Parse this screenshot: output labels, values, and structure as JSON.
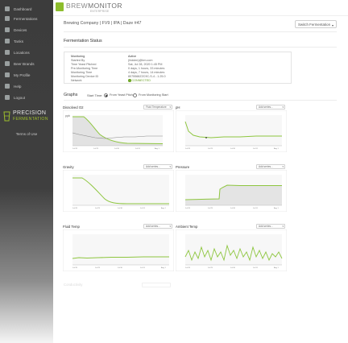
{
  "sidebar": {
    "items": [
      {
        "label": "Dashboard",
        "icon": "dashboard-icon"
      },
      {
        "label": "Fermentations",
        "icon": "fermentation-icon"
      },
      {
        "label": "Devices",
        "icon": "device-icon"
      },
      {
        "label": "Tanks",
        "icon": "tank-icon"
      },
      {
        "label": "Locations",
        "icon": "location-icon"
      },
      {
        "label": "Beer Brands",
        "icon": "beer-icon"
      },
      {
        "label": "My Profile",
        "icon": "user-icon"
      },
      {
        "label": "Help",
        "icon": "help-icon"
      },
      {
        "label": "Logout",
        "icon": "logout-icon"
      }
    ],
    "brand_line1": "PRECISION",
    "brand_line2": "FERMENTATION",
    "terms": "Terms of Use"
  },
  "header": {
    "logo_prefix": "BREW",
    "logo_suffix": "MONITOR",
    "logo_sub": "ENTERPRISE"
  },
  "breadcrumb": "Brewing Company | FV9 | IPA | Daze #47",
  "switch_button": "Switch Fermentation",
  "status": {
    "title": "Fermentation Status",
    "labels": [
      "Monitoring",
      "Started By",
      "Time Yeast Pitched",
      "Pre-Monitoring Time",
      "Monitoring Time",
      "Monitoring Device ID",
      "Network"
    ],
    "values": [
      "Active",
      "(hidden)@bm.com",
      "Sat, Jul 28, 2020 1:45 PM",
      "0 days, 1 hours, 33 minutes",
      "4 days, 7 hours, 14 minutes",
      "8075568Z2C9C-S-4 - 1.25.0"
    ],
    "network_status": "CONNECTED",
    "accent": "#71a82a"
  },
  "graphs": {
    "title": "Graphs",
    "start_time_label": "Start Time:",
    "option_yeast": "From Yeast Pitch",
    "option_monitoring": "From Monitoring Start"
  },
  "panels": [
    {
      "title": "Dissolved O2",
      "select": "Fluid Temperature",
      "y_label": "ppb"
    },
    {
      "title": "pH",
      "select": "Add series..."
    },
    {
      "title": "Gravity",
      "select": "Add series..."
    },
    {
      "title": "Pressure",
      "select": "Add series..."
    },
    {
      "title": "Fluid Temp",
      "select": "Add series..."
    },
    {
      "title": "Ambient Temp",
      "select": "Add series..."
    }
  ],
  "ghost_panel": {
    "title": "Conductivity"
  },
  "colors": {
    "series": "#8ec63f",
    "secondary": "#8a8a8a",
    "sidebar": "#3c3c3c"
  }
}
